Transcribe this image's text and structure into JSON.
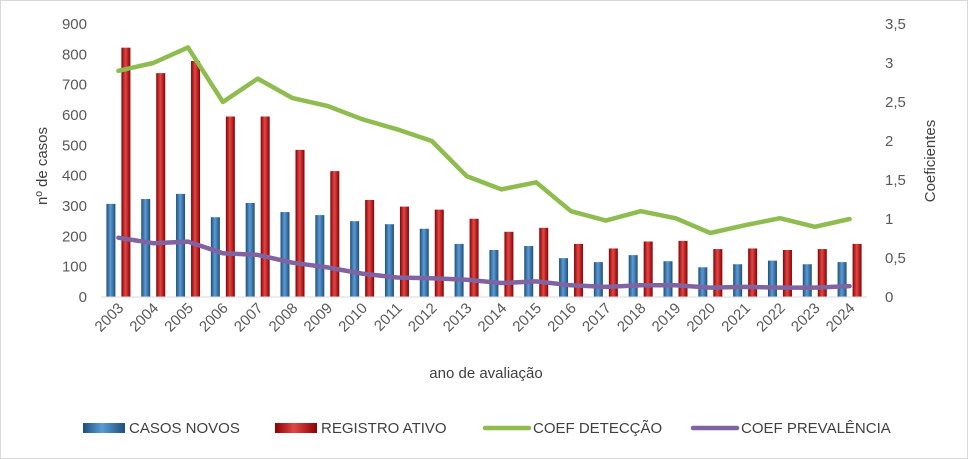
{
  "chart_data": {
    "type": "bar",
    "combo": "bar+line (dual axis)",
    "xlabel": "ano de avaliação",
    "ylabel": "nº de casos",
    "y2label": "Coeficientes",
    "ylim": [
      0,
      900
    ],
    "y2lim": [
      0,
      3.5
    ],
    "yticks": [
      "900",
      "800",
      "700",
      "600",
      "500",
      "400",
      "300",
      "200",
      "100",
      "0"
    ],
    "y2ticks": [
      "3,5",
      "3",
      "2,5",
      "2",
      "1,5",
      "1",
      "0,5",
      "0"
    ],
    "grid": false,
    "legend_position": "bottom",
    "categories": [
      "2003",
      "2004",
      "2005",
      "2006",
      "2007",
      "2008",
      "2009",
      "2010",
      "2011",
      "2012",
      "2013",
      "2014",
      "2015",
      "2016",
      "2017",
      "2018",
      "2019",
      "2020",
      "2021",
      "2022",
      "2023",
      "2024"
    ],
    "series": [
      {
        "name": "CASOS NOVOS",
        "type": "bar",
        "axis": "left",
        "color": "#2e75b6",
        "values": [
          307,
          323,
          340,
          263,
          310,
          280,
          270,
          250,
          240,
          225,
          175,
          155,
          168,
          128,
          115,
          138,
          118,
          98,
          108,
          120,
          108,
          115
        ]
      },
      {
        "name": "REGISTRO ATIVO",
        "type": "bar",
        "axis": "left",
        "color": "#c00000",
        "values": [
          822,
          738,
          778,
          595,
          595,
          485,
          415,
          320,
          298,
          288,
          258,
          215,
          228,
          175,
          160,
          183,
          185,
          158,
          160,
          155,
          158,
          175
        ]
      },
      {
        "name": "COEF DETECÇÃO",
        "type": "line",
        "axis": "right",
        "color": "#8fbc4f",
        "values": [
          2.9,
          3.0,
          3.2,
          2.5,
          2.8,
          2.55,
          2.45,
          2.28,
          2.15,
          2.0,
          1.55,
          1.38,
          1.47,
          1.1,
          0.98,
          1.1,
          1.01,
          0.82,
          0.92,
          1.01,
          0.9,
          1.0
        ]
      },
      {
        "name": "COEF PREVALÊNCIA",
        "type": "line",
        "axis": "right",
        "color": "#8064a2",
        "values": [
          0.76,
          0.69,
          0.71,
          0.56,
          0.54,
          0.44,
          0.38,
          0.3,
          0.25,
          0.24,
          0.22,
          0.18,
          0.2,
          0.15,
          0.13,
          0.15,
          0.15,
          0.12,
          0.13,
          0.12,
          0.12,
          0.14
        ]
      }
    ]
  }
}
